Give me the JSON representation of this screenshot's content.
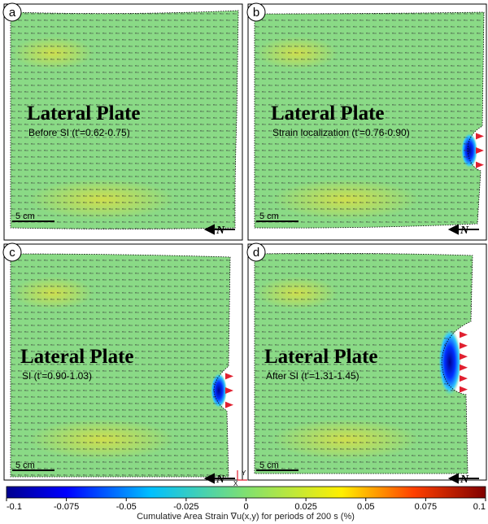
{
  "panels": [
    {
      "letter": "a",
      "title": "Lateral Plate",
      "subtitle": "Before SI (t'=0.62-0.75)",
      "scale": "5 cm",
      "north": "N"
    },
    {
      "letter": "b",
      "title": "Lateral Plate",
      "subtitle": "Strain localization (t'=0.76-0.90)",
      "scale": "5 cm",
      "north": "N"
    },
    {
      "letter": "c",
      "title": "Lateral Plate",
      "subtitle": "SI (t'=0.90-1.03)",
      "scale": "5 cm",
      "north": "N"
    },
    {
      "letter": "d",
      "title": "Lateral Plate",
      "subtitle": "After SI (t'=1.31-1.45)",
      "scale": "5 cm",
      "north": "N"
    }
  ],
  "axes_indicator": {
    "x": "X",
    "y": "Y"
  },
  "colorbar": {
    "range": [
      -0.1,
      0.1
    ],
    "ticks": [
      -0.1,
      -0.075,
      -0.05,
      -0.025,
      0,
      0.025,
      0.05,
      0.075,
      0.1
    ],
    "label": "Cumulative Area Strain ∇u(x,y) for periods of 200 s (%)"
  }
}
